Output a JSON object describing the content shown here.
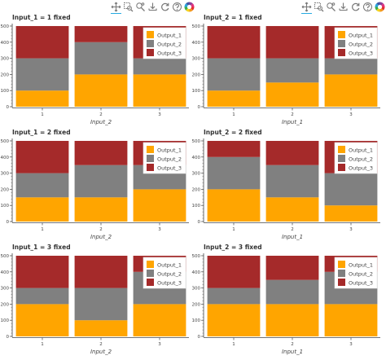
{
  "toolbars": [
    {
      "tools": [
        "pan-icon",
        "box-zoom-icon",
        "wheel-zoom-icon",
        "save-icon",
        "reset-icon",
        "help-icon",
        "bokeh-logo-icon"
      ]
    },
    {
      "tools": [
        "pan-icon",
        "box-zoom-icon",
        "wheel-zoom-icon",
        "save-icon",
        "reset-icon",
        "help-icon",
        "bokeh-logo-icon"
      ]
    }
  ],
  "colors": {
    "Output_1": "#ffa500",
    "Output_2": "#808080",
    "Output_3": "#a52a2a"
  },
  "chart_data": [
    {
      "type": "bar",
      "stacked": true,
      "title": "Input_1 = 1 fixed",
      "xlabel": "Input_2",
      "categories": [
        "1",
        "2",
        "3"
      ],
      "ylim": [
        0,
        510
      ],
      "yticks": [
        0,
        100,
        200,
        300,
        400,
        500
      ],
      "series": [
        {
          "name": "Output_1",
          "values": [
            100,
            200,
            200
          ]
        },
        {
          "name": "Output_2",
          "values": [
            200,
            200,
            100
          ]
        },
        {
          "name": "Output_3",
          "values": [
            200,
            100,
            200
          ]
        }
      ],
      "legend": "top-right"
    },
    {
      "type": "bar",
      "stacked": true,
      "title": "Input_2 = 1 fixed",
      "xlabel": "Input_1",
      "categories": [
        "1",
        "2",
        "3"
      ],
      "ylim": [
        0,
        510
      ],
      "yticks": [
        0,
        100,
        200,
        300,
        400,
        500
      ],
      "series": [
        {
          "name": "Output_1",
          "values": [
            100,
            150,
            200
          ]
        },
        {
          "name": "Output_2",
          "values": [
            200,
            150,
            100
          ]
        },
        {
          "name": "Output_3",
          "values": [
            200,
            200,
            200
          ]
        }
      ],
      "legend": "top-right"
    },
    {
      "type": "bar",
      "stacked": true,
      "title": "Input_1 = 2 fixed",
      "xlabel": "Input_2",
      "categories": [
        "1",
        "2",
        "3"
      ],
      "ylim": [
        0,
        510
      ],
      "yticks": [
        0,
        100,
        200,
        300,
        400,
        500
      ],
      "series": [
        {
          "name": "Output_1",
          "values": [
            150,
            150,
            200
          ]
        },
        {
          "name": "Output_2",
          "values": [
            150,
            200,
            150
          ]
        },
        {
          "name": "Output_3",
          "values": [
            200,
            150,
            150
          ]
        }
      ],
      "legend": "top-right"
    },
    {
      "type": "bar",
      "stacked": true,
      "title": "Input_2 = 2 fixed",
      "xlabel": "Input_1",
      "categories": [
        "1",
        "2",
        "3"
      ],
      "ylim": [
        0,
        510
      ],
      "yticks": [
        0,
        100,
        200,
        300,
        400,
        500
      ],
      "series": [
        {
          "name": "Output_1",
          "values": [
            200,
            150,
            100
          ]
        },
        {
          "name": "Output_2",
          "values": [
            200,
            200,
            200
          ]
        },
        {
          "name": "Output_3",
          "values": [
            100,
            150,
            200
          ]
        }
      ],
      "legend": "top-right"
    },
    {
      "type": "bar",
      "stacked": true,
      "title": "Input_1 = 3 fixed",
      "xlabel": "Input_2",
      "categories": [
        "1",
        "2",
        "3"
      ],
      "ylim": [
        0,
        510
      ],
      "yticks": [
        0,
        100,
        200,
        300,
        400,
        500
      ],
      "series": [
        {
          "name": "Output_1",
          "values": [
            200,
            100,
            200
          ]
        },
        {
          "name": "Output_2",
          "values": [
            100,
            200,
            200
          ]
        },
        {
          "name": "Output_3",
          "values": [
            200,
            200,
            100
          ]
        }
      ],
      "legend": "top-right"
    },
    {
      "type": "bar",
      "stacked": true,
      "title": "Input_2 = 3 fixed",
      "xlabel": "Input_1",
      "categories": [
        "1",
        "2",
        "3"
      ],
      "ylim": [
        0,
        510
      ],
      "yticks": [
        0,
        100,
        200,
        300,
        400,
        500
      ],
      "series": [
        {
          "name": "Output_1",
          "values": [
            200,
            200,
            200
          ]
        },
        {
          "name": "Output_2",
          "values": [
            100,
            150,
            200
          ]
        },
        {
          "name": "Output_3",
          "values": [
            200,
            150,
            100
          ]
        }
      ],
      "legend": "top-right"
    }
  ]
}
